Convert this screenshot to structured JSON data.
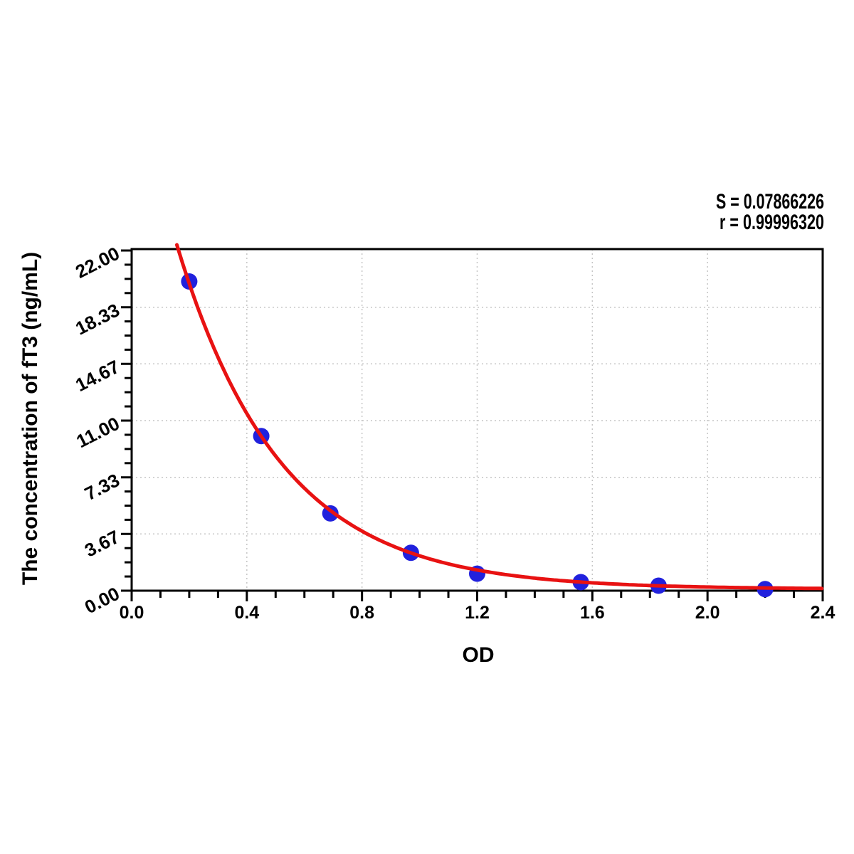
{
  "stats": {
    "s_text": "S = 0.07866226",
    "r_text": "r = 0.99996320"
  },
  "chart_data": {
    "type": "scatter",
    "title": "",
    "xlabel": "OD",
    "ylabel": "The concentration of fT3 (ng/mL)",
    "xlim": [
      0.0,
      2.4
    ],
    "ylim": [
      0.0,
      22.0
    ],
    "x_ticks": [
      0.0,
      0.4,
      0.8,
      1.2,
      1.6,
      2.0,
      2.4
    ],
    "x_tick_labels": [
      "0.0",
      "0.4",
      "0.8",
      "1.2",
      "1.6",
      "2.0",
      "2.4"
    ],
    "y_ticks": [
      0.0,
      3.67,
      7.33,
      11.0,
      14.67,
      18.33,
      22.0
    ],
    "y_tick_labels": [
      "0.00",
      "3.67",
      "7.33",
      "11.00",
      "14.67",
      "18.33",
      "22.00"
    ],
    "x_minor_divisions": 4,
    "y_minor_divisions": 4,
    "grid": "dotted gridlines at major ticks, full frame, ticks outside",
    "legend": "none",
    "series": [
      {
        "name": "standard-points",
        "type": "scatter",
        "x": [
          0.2,
          0.45,
          0.69,
          0.97,
          1.2,
          1.56,
          1.83,
          2.2
        ],
        "y": [
          20.0,
          10.0,
          5.0,
          2.45,
          1.1,
          0.55,
          0.32,
          0.1
        ]
      },
      {
        "name": "fitted-curve",
        "type": "line",
        "fit": "y = 34.4 * exp(-2.77 * x) + 0.1",
        "A": 34.4,
        "k": 2.77,
        "c": 0.1,
        "x_start": 0.157,
        "x_end": 2.4
      }
    ],
    "annotations": [
      "S = 0.07866226",
      "r = 0.99996320"
    ],
    "colors": {
      "curve": "#e81212",
      "points": "#2121dd",
      "grid": "#c6c6c6",
      "axis": "#000000",
      "text": "#000000",
      "background": "#ffffff"
    }
  }
}
